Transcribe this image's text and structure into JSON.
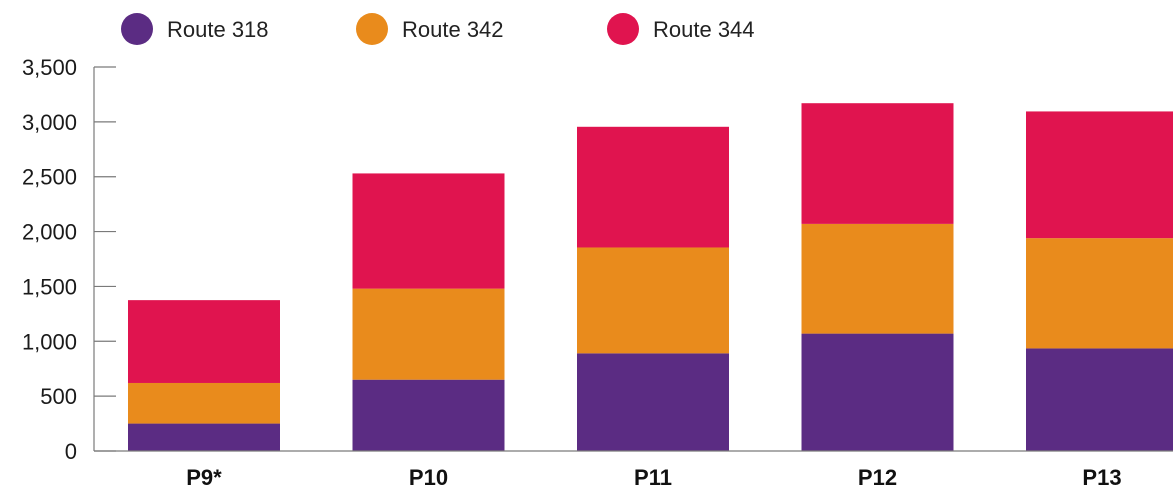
{
  "chart_data": {
    "type": "bar",
    "stacked": true,
    "categories": [
      "P9*",
      "P10",
      "P11",
      "P12",
      "P13"
    ],
    "series": [
      {
        "name": "Route 318",
        "color": "#5b2c83",
        "values": [
          250,
          650,
          890,
          1070,
          935
        ]
      },
      {
        "name": "Route 342",
        "color": "#e98b1c",
        "values": [
          370,
          830,
          965,
          1000,
          1005
        ]
      },
      {
        "name": "Route 344",
        "color": "#e0144f",
        "values": [
          755,
          1050,
          1100,
          1100,
          1155
        ]
      }
    ],
    "ylim": [
      0,
      3500
    ],
    "yticks": [
      0,
      500,
      1000,
      1500,
      2000,
      2500,
      3000,
      3500
    ],
    "ytick_labels": [
      "0",
      "500",
      "1,000",
      "1,500",
      "2,000",
      "2,500",
      "3,000",
      "3,500"
    ],
    "legend_position": "top-left",
    "grid": false,
    "title": "",
    "xlabel": "",
    "ylabel": ""
  }
}
